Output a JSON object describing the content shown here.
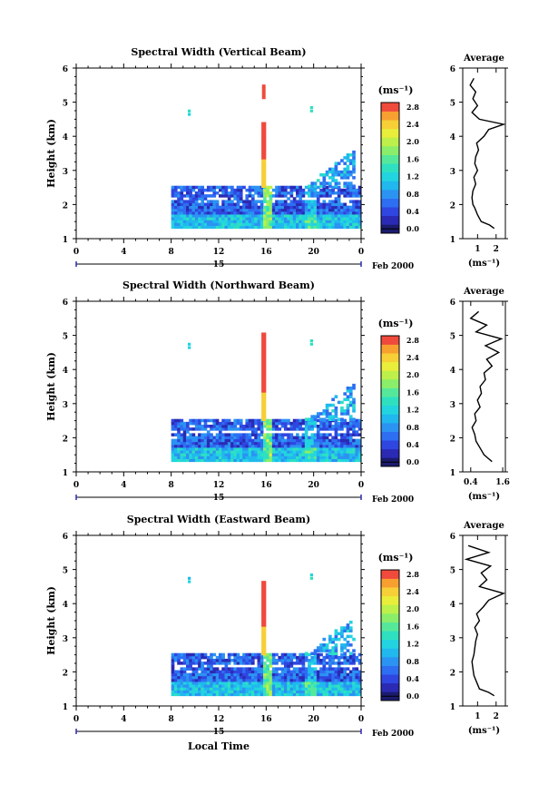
{
  "panels": [
    {
      "id": "vertical",
      "title": "Spectral Width (Vertical Beam)",
      "ylabel": "Height (km)",
      "xticks": [
        "0",
        "4",
        "8",
        "12",
        "16",
        "20",
        "0"
      ],
      "day_label": "15",
      "month_label": "Feb 2000",
      "yticks": [
        "1",
        "2",
        "3",
        "4",
        "5",
        "6"
      ],
      "colorbar": {
        "unit": "(ms⁻¹)",
        "ticks": [
          "0.0",
          "0.4",
          "0.8",
          "1.2",
          "1.6",
          "2.0",
          "2.4",
          "2.8"
        ],
        "max": 3.0
      },
      "avg": {
        "title": "Average",
        "xlabel": "(ms⁻¹)",
        "xticks": [
          "1",
          "2"
        ],
        "xlim": [
          0.2,
          2.5
        ],
        "tick_values": [
          1,
          2
        ],
        "profile": [
          [
            1.3,
            1.9
          ],
          [
            1.4,
            1.65
          ],
          [
            1.5,
            1.2
          ],
          [
            1.7,
            1.0
          ],
          [
            1.9,
            0.85
          ],
          [
            2.0,
            0.75
          ],
          [
            2.2,
            0.7
          ],
          [
            2.4,
            0.75
          ],
          [
            2.6,
            0.9
          ],
          [
            2.8,
            0.8
          ],
          [
            3.0,
            1.0
          ],
          [
            3.2,
            0.85
          ],
          [
            3.4,
            0.9
          ],
          [
            3.6,
            1.05
          ],
          [
            3.8,
            0.95
          ],
          [
            4.0,
            1.35
          ],
          [
            4.2,
            1.6
          ],
          [
            4.35,
            2.4
          ],
          [
            4.5,
            1.1
          ],
          [
            4.7,
            0.7
          ],
          [
            4.9,
            1.0
          ],
          [
            5.1,
            0.75
          ],
          [
            5.3,
            0.9
          ],
          [
            5.5,
            0.6
          ],
          [
            5.7,
            0.8
          ]
        ]
      }
    },
    {
      "id": "northward",
      "title": "Spectral Width (Northward Beam)",
      "ylabel": "Height (km)",
      "xticks": [
        "0",
        "4",
        "8",
        "12",
        "16",
        "20",
        "0"
      ],
      "day_label": "15",
      "month_label": "Feb 2000",
      "yticks": [
        "1",
        "2",
        "3",
        "4",
        "5",
        "6"
      ],
      "colorbar": {
        "unit": "(ms⁻¹)",
        "ticks": [
          "0.0",
          "0.4",
          "0.8",
          "1.2",
          "1.6",
          "2.0",
          "2.4",
          "2.8"
        ],
        "max": 3.0
      },
      "avg": {
        "title": "Average",
        "xlabel": "(ms⁻¹)",
        "xticks": [
          "0.4",
          "1.6"
        ],
        "xlim": [
          0.1,
          1.7
        ],
        "tick_values": [
          0.4,
          1.6
        ],
        "profile": [
          [
            1.3,
            1.2
          ],
          [
            1.4,
            1.05
          ],
          [
            1.5,
            0.9
          ],
          [
            1.7,
            0.75
          ],
          [
            1.9,
            0.6
          ],
          [
            2.1,
            0.55
          ],
          [
            2.3,
            0.45
          ],
          [
            2.5,
            0.6
          ],
          [
            2.7,
            0.55
          ],
          [
            2.9,
            0.75
          ],
          [
            3.1,
            0.65
          ],
          [
            3.3,
            0.8
          ],
          [
            3.5,
            0.75
          ],
          [
            3.7,
            0.95
          ],
          [
            3.9,
            0.9
          ],
          [
            4.1,
            1.2
          ],
          [
            4.3,
            1.0
          ],
          [
            4.5,
            1.45
          ],
          [
            4.7,
            0.95
          ],
          [
            4.9,
            1.55
          ],
          [
            5.1,
            0.6
          ],
          [
            5.3,
            1.0
          ],
          [
            5.5,
            0.4
          ],
          [
            5.7,
            0.7
          ]
        ]
      }
    },
    {
      "id": "eastward",
      "title": "Spectral Width (Eastward Beam)",
      "ylabel": "Height (km)",
      "xticks": [
        "0",
        "4",
        "8",
        "12",
        "16",
        "20",
        "0"
      ],
      "day_label": "15",
      "month_label": "Feb 2000",
      "yticks": [
        "1",
        "2",
        "3",
        "4",
        "5",
        "6"
      ],
      "colorbar": {
        "unit": "(ms⁻¹)",
        "ticks": [
          "0.0",
          "0.4",
          "0.8",
          "1.2",
          "1.6",
          "2.0",
          "2.4",
          "2.8"
        ],
        "max": 3.0
      },
      "avg": {
        "title": "Average",
        "xlabel": "(ms⁻¹)",
        "xticks": [
          "1",
          "2"
        ],
        "xlim": [
          0.2,
          2.5
        ],
        "tick_values": [
          1,
          2
        ],
        "profile": [
          [
            1.3,
            1.9
          ],
          [
            1.4,
            1.6
          ],
          [
            1.5,
            1.1
          ],
          [
            1.7,
            0.95
          ],
          [
            1.9,
            0.8
          ],
          [
            2.1,
            0.75
          ],
          [
            2.3,
            0.7
          ],
          [
            2.5,
            0.8
          ],
          [
            2.7,
            0.85
          ],
          [
            2.9,
            0.9
          ],
          [
            3.1,
            1.0
          ],
          [
            3.3,
            0.85
          ],
          [
            3.5,
            1.1
          ],
          [
            3.7,
            0.95
          ],
          [
            3.9,
            1.3
          ],
          [
            4.1,
            1.6
          ],
          [
            4.3,
            2.4
          ],
          [
            4.5,
            1.1
          ],
          [
            4.7,
            1.5
          ],
          [
            4.9,
            1.2
          ],
          [
            5.1,
            1.7
          ],
          [
            5.3,
            0.4
          ],
          [
            5.5,
            1.6
          ],
          [
            5.7,
            0.5
          ]
        ]
      }
    }
  ],
  "footer": {
    "xlabel": "Local Time"
  },
  "chart_data": [
    {
      "type": "heatmap",
      "title": "Spectral Width (Vertical Beam)",
      "xlabel": "",
      "ylabel": "Height (km)",
      "xlim": [
        0,
        24
      ],
      "ylim": [
        1,
        6
      ],
      "colorbar_range": [
        0,
        3.0
      ]
    },
    {
      "type": "line",
      "title": "Average",
      "xlabel": "(ms⁻¹)",
      "ylabel": "",
      "xlim": [
        0.2,
        2.5
      ],
      "ylim": [
        1,
        6
      ]
    },
    {
      "type": "heatmap",
      "title": "Spectral Width (Northward Beam)",
      "xlabel": "",
      "ylabel": "Height (km)",
      "xlim": [
        0,
        24
      ],
      "ylim": [
        1,
        6
      ],
      "colorbar_range": [
        0,
        3.0
      ]
    },
    {
      "type": "line",
      "title": "Average",
      "xlabel": "(ms⁻¹)",
      "ylabel": "",
      "xlim": [
        0.1,
        1.7
      ],
      "ylim": [
        1,
        6
      ]
    },
    {
      "type": "heatmap",
      "title": "Spectral Width (Eastward Beam)",
      "xlabel": "Local Time",
      "ylabel": "Height (km)",
      "xlim": [
        0,
        24
      ],
      "ylim": [
        1,
        6
      ],
      "colorbar_range": [
        0,
        3.0
      ]
    },
    {
      "type": "line",
      "title": "Average",
      "xlabel": "(ms⁻¹)",
      "ylabel": "",
      "xlim": [
        0.2,
        2.5
      ],
      "ylim": [
        1,
        6
      ]
    }
  ]
}
